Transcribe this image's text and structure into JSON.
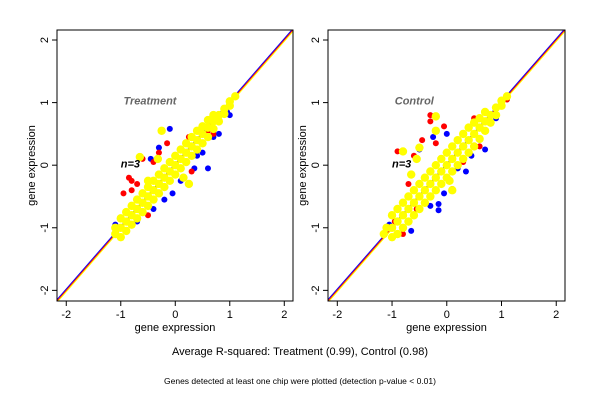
{
  "summary": "Average R-squared: Treatment (0.99), Control (0.98)",
  "footnote": "Genes detected at least one chip were plotted (detection p-value < 0.01)",
  "chart_data": [
    {
      "type": "scatter",
      "title": "Treatment",
      "annotation": "n=3",
      "xlabel": "gene expression",
      "ylabel": "gene expression",
      "xlim": [
        -2.17,
        2.16
      ],
      "ylim": [
        -2.17,
        2.16
      ],
      "xticks": [
        "-2",
        "-1",
        "0",
        "1",
        "2"
      ],
      "yticks": [
        "-2",
        "-1",
        "0",
        "1",
        "2"
      ],
      "reference_lines": [
        {
          "slope": 1,
          "intercept": 0,
          "colors": [
            "#0000ff",
            "#ff0000",
            "#ffff00"
          ]
        }
      ],
      "grid": false,
      "series": [
        {
          "color": "#0000ff",
          "points": [
            [
              -0.1,
              0.58
            ],
            [
              -0.45,
              0.1
            ],
            [
              -0.3,
              0.28
            ],
            [
              0.4,
              0.15
            ],
            [
              0.7,
              0.45
            ],
            [
              0.8,
              0.5
            ],
            [
              1.0,
              0.8
            ],
            [
              0.95,
              0.85
            ],
            [
              -0.7,
              -0.9
            ],
            [
              -1.1,
              -0.95
            ],
            [
              0.6,
              -0.05
            ],
            [
              0.35,
              -0.05
            ],
            [
              -0.05,
              -0.45
            ],
            [
              -0.2,
              -0.55
            ],
            [
              0.1,
              -0.25
            ],
            [
              -0.4,
              -0.7
            ],
            [
              0.5,
              0.2
            ]
          ]
        },
        {
          "color": "#ff0000",
          "points": [
            [
              -0.8,
              -0.25
            ],
            [
              -0.85,
              -0.2
            ],
            [
              -0.95,
              -0.45
            ],
            [
              -0.6,
              0.1
            ],
            [
              -0.3,
              0.2
            ],
            [
              -0.15,
              0.35
            ],
            [
              0.6,
              0.55
            ],
            [
              0.7,
              0.5
            ],
            [
              0.25,
              0.45
            ],
            [
              -0.5,
              -0.8
            ],
            [
              -0.8,
              -0.4
            ],
            [
              0.3,
              -0.1
            ],
            [
              -0.7,
              -0.3
            ],
            [
              -0.4,
              0.05
            ]
          ]
        },
        {
          "color": "#ffff00",
          "points": [
            [
              -1.1,
              -1.1
            ],
            [
              -1.1,
              -1.0
            ],
            [
              -1.0,
              -1.15
            ],
            [
              -1.0,
              -1.0
            ],
            [
              -1.0,
              -0.85
            ],
            [
              -0.9,
              -1.05
            ],
            [
              -0.9,
              -0.9
            ],
            [
              -0.9,
              -0.75
            ],
            [
              -0.8,
              -0.95
            ],
            [
              -0.8,
              -0.8
            ],
            [
              -0.8,
              -0.65
            ],
            [
              -0.7,
              -0.85
            ],
            [
              -0.7,
              -0.7
            ],
            [
              -0.7,
              -0.55
            ],
            [
              -0.6,
              -0.75
            ],
            [
              -0.6,
              -0.6
            ],
            [
              -0.6,
              -0.45
            ],
            [
              -0.5,
              -0.65
            ],
            [
              -0.5,
              -0.5
            ],
            [
              -0.5,
              -0.35
            ],
            [
              -0.4,
              -0.55
            ],
            [
              -0.4,
              -0.4
            ],
            [
              -0.4,
              -0.25
            ],
            [
              -0.3,
              -0.45
            ],
            [
              -0.3,
              -0.3
            ],
            [
              -0.3,
              -0.15
            ],
            [
              -0.2,
              -0.35
            ],
            [
              -0.2,
              -0.2
            ],
            [
              -0.2,
              -0.05
            ],
            [
              -0.1,
              -0.25
            ],
            [
              -0.1,
              -0.1
            ],
            [
              -0.1,
              0.05
            ],
            [
              0,
              -0.15
            ],
            [
              0,
              0
            ],
            [
              0,
              0.15
            ],
            [
              0.1,
              -0.05
            ],
            [
              0.1,
              0.1
            ],
            [
              0.1,
              0.25
            ],
            [
              0.2,
              0.05
            ],
            [
              0.2,
              0.2
            ],
            [
              0.2,
              0.35
            ],
            [
              0.3,
              0.15
            ],
            [
              0.3,
              0.3
            ],
            [
              0.3,
              0.45
            ],
            [
              0.4,
              0.25
            ],
            [
              0.4,
              0.4
            ],
            [
              0.4,
              0.55
            ],
            [
              0.5,
              0.35
            ],
            [
              0.5,
              0.5
            ],
            [
              0.5,
              0.62
            ],
            [
              0.6,
              0.45
            ],
            [
              0.6,
              0.6
            ],
            [
              0.6,
              0.72
            ],
            [
              0.7,
              0.58
            ],
            [
              0.7,
              0.7
            ],
            [
              0.7,
              0.8
            ],
            [
              0.8,
              0.7
            ],
            [
              0.8,
              0.8
            ],
            [
              0.9,
              0.82
            ],
            [
              0.9,
              0.9
            ],
            [
              1.0,
              0.95
            ],
            [
              1.0,
              1.02
            ],
            [
              1.1,
              1.1
            ],
            [
              -0.65,
              0.13
            ],
            [
              -0.5,
              -0.25
            ],
            [
              -0.32,
              0.1
            ],
            [
              0.15,
              -0.2
            ],
            [
              -0.25,
              0.55
            ],
            [
              0.25,
              -0.3
            ]
          ]
        }
      ]
    },
    {
      "type": "scatter",
      "title": "Control",
      "annotation": "n=3",
      "xlabel": "gene expression",
      "ylabel": "gene expression",
      "xlim": [
        -2.17,
        2.16
      ],
      "ylim": [
        -2.17,
        2.16
      ],
      "xticks": [
        "-2",
        "-1",
        "0",
        "1",
        "2"
      ],
      "yticks": [
        "-2",
        "-1",
        "0",
        "1",
        "2"
      ],
      "reference_lines": [
        {
          "slope": 1,
          "intercept": 0,
          "colors": [
            "#0000ff",
            "#ff0000",
            "#ffff00"
          ]
        }
      ],
      "grid": false,
      "series": [
        {
          "color": "#0000ff",
          "points": [
            [
              -0.15,
              -0.72
            ],
            [
              -0.15,
              -0.62
            ],
            [
              -0.05,
              -0.45
            ],
            [
              0.2,
              -0.05
            ],
            [
              0.45,
              0.15
            ],
            [
              0.7,
              0.25
            ],
            [
              0.9,
              0.75
            ],
            [
              -0.65,
              -1.05
            ],
            [
              -0.3,
              -0.65
            ],
            [
              -0.25,
              0.45
            ],
            [
              0,
              0.5
            ],
            [
              -0.5,
              0.25
            ],
            [
              -1.05,
              -0.95
            ],
            [
              0.35,
              -0.1
            ]
          ]
        },
        {
          "color": "#ff0000",
          "points": [
            [
              -0.9,
              0.22
            ],
            [
              -0.3,
              0.8
            ],
            [
              -0.3,
              0.7
            ],
            [
              -0.45,
              0.4
            ],
            [
              -0.6,
              0.15
            ],
            [
              -0.7,
              -0.3
            ],
            [
              0.1,
              -0.38
            ],
            [
              0.7,
              0.7
            ],
            [
              -0.05,
              0.62
            ],
            [
              -0.2,
              0.35
            ],
            [
              -0.8,
              -1.1
            ],
            [
              -0.55,
              -0.7
            ],
            [
              0.3,
              0.05
            ],
            [
              0.6,
              0.3
            ],
            [
              -0.95,
              -0.9
            ],
            [
              0.5,
              0.75
            ],
            [
              1.1,
              1.05
            ]
          ]
        },
        {
          "color": "#ffff00",
          "points": [
            [
              -1.15,
              -1.1
            ],
            [
              -1.1,
              -1.0
            ],
            [
              -1.0,
              -1.15
            ],
            [
              -1.0,
              -1.0
            ],
            [
              -1.0,
              -0.8
            ],
            [
              -0.9,
              -1.1
            ],
            [
              -0.9,
              -0.9
            ],
            [
              -0.9,
              -0.7
            ],
            [
              -0.8,
              -1.0
            ],
            [
              -0.8,
              -0.8
            ],
            [
              -0.8,
              -0.6
            ],
            [
              -0.7,
              -0.9
            ],
            [
              -0.7,
              -0.7
            ],
            [
              -0.7,
              -0.5
            ],
            [
              -0.6,
              -0.8
            ],
            [
              -0.6,
              -0.6
            ],
            [
              -0.6,
              -0.4
            ],
            [
              -0.5,
              -0.7
            ],
            [
              -0.5,
              -0.5
            ],
            [
              -0.5,
              -0.3
            ],
            [
              -0.4,
              -0.6
            ],
            [
              -0.4,
              -0.4
            ],
            [
              -0.4,
              -0.2
            ],
            [
              -0.3,
              -0.5
            ],
            [
              -0.3,
              -0.3
            ],
            [
              -0.3,
              -0.1
            ],
            [
              -0.2,
              -0.4
            ],
            [
              -0.2,
              -0.2
            ],
            [
              -0.2,
              0.0
            ],
            [
              -0.1,
              -0.3
            ],
            [
              -0.1,
              -0.1
            ],
            [
              -0.1,
              0.1
            ],
            [
              0,
              -0.2
            ],
            [
              0,
              0
            ],
            [
              0,
              0.2
            ],
            [
              0.1,
              -0.1
            ],
            [
              0.1,
              0.1
            ],
            [
              0.1,
              0.3
            ],
            [
              0.2,
              0.0
            ],
            [
              0.2,
              0.2
            ],
            [
              0.2,
              0.4
            ],
            [
              0.3,
              0.1
            ],
            [
              0.3,
              0.3
            ],
            [
              0.3,
              0.5
            ],
            [
              0.4,
              0.2
            ],
            [
              0.4,
              0.4
            ],
            [
              0.4,
              0.6
            ],
            [
              0.5,
              0.3
            ],
            [
              0.5,
              0.5
            ],
            [
              0.5,
              0.68
            ],
            [
              0.6,
              0.42
            ],
            [
              0.6,
              0.6
            ],
            [
              0.6,
              0.75
            ],
            [
              0.7,
              0.55
            ],
            [
              0.7,
              0.7
            ],
            [
              0.7,
              0.85
            ],
            [
              0.8,
              0.68
            ],
            [
              0.8,
              0.8
            ],
            [
              0.9,
              0.8
            ],
            [
              0.9,
              0.92
            ],
            [
              1.0,
              0.95
            ],
            [
              1.0,
              1.03
            ],
            [
              1.1,
              1.1
            ],
            [
              -0.2,
              0.78
            ],
            [
              -0.2,
              0.55
            ],
            [
              -0.8,
              0.22
            ],
            [
              -0.5,
              0.28
            ],
            [
              -0.55,
              0.1
            ],
            [
              0.1,
              -0.4
            ],
            [
              0.05,
              -0.25
            ],
            [
              -0.65,
              -0.15
            ]
          ]
        }
      ]
    }
  ]
}
